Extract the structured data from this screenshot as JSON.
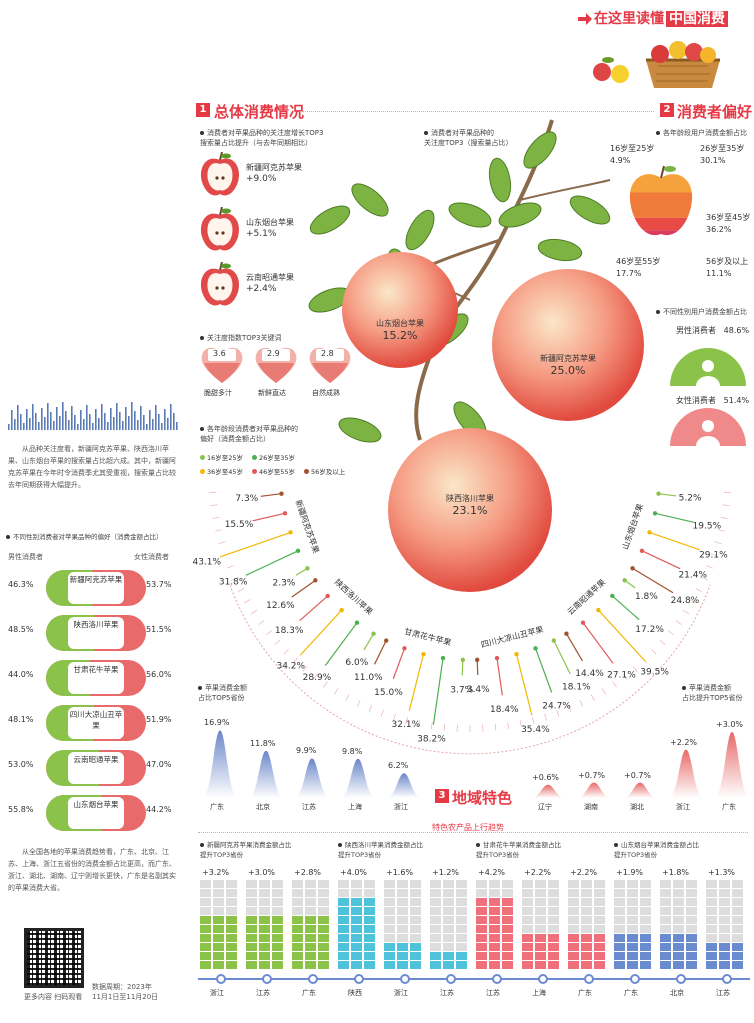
{
  "header": {
    "title_prefix": "在这里读懂",
    "title_highlight": "中国消费"
  },
  "section1": {
    "num": "1",
    "title": "总体消费情况"
  },
  "section2": {
    "num": "2",
    "title": "消费者偏好"
  },
  "section3": {
    "num": "3",
    "title": "地域特色"
  },
  "search_top3": {
    "caption": "消费者对苹果品种的关注度增长TOP3\n搜索量占比提升（与去年同期相比）",
    "items": [
      {
        "name": "新疆阿克苏苹果",
        "value": "+9.0%"
      },
      {
        "name": "山东烟台苹果",
        "value": "+5.1%"
      },
      {
        "name": "云南昭通苹果",
        "value": "+2.4%"
      }
    ]
  },
  "keywords": {
    "caption": "关注度指数TOP3关键词",
    "items": [
      {
        "score": "3.6",
        "label": "脆甜多汁"
      },
      {
        "score": "2.9",
        "label": "新鲜直达"
      },
      {
        "score": "2.8",
        "label": "自然成熟"
      }
    ]
  },
  "apple_tree": {
    "caption": "消费者对苹果品种的\n关注度TOP3（搜索量占比）",
    "apples": [
      {
        "name": "山东烟台苹果",
        "value": "15.2%"
      },
      {
        "name": "新疆阿克苏苹果",
        "value": "25.0%"
      },
      {
        "name": "陕西洛川苹果",
        "value": "23.1%"
      }
    ]
  },
  "age_caption": "各年龄段消费者对苹果品种的\n偏好（消费金额占比）",
  "age_legend": [
    {
      "label": "16岁至25岁",
      "color": "#8bc34a"
    },
    {
      "label": "26岁至35岁",
      "color": "#4caf50"
    },
    {
      "label": "36岁至45岁",
      "color": "#f2b705"
    },
    {
      "label": "46岁至55岁",
      "color": "#e05a5a"
    },
    {
      "label": "56岁及以上",
      "color": "#a0522d"
    }
  ],
  "radial": {
    "varieties": [
      {
        "name": "新疆阿克苏苹果",
        "values": [
          "2.3%",
          "31.8%",
          "43.1%",
          "15.5%",
          "7.3%"
        ]
      },
      {
        "name": "陕西洛川苹果",
        "values": [
          "6.0%",
          "28.9%",
          "34.2%",
          "18.3%",
          "12.6%"
        ]
      },
      {
        "name": "甘肃花牛苹果",
        "values": [
          "3.7%",
          "38.2%",
          "32.1%",
          "15.0%",
          "11.0%"
        ]
      },
      {
        "name": "四川大凉山丑苹果",
        "values": [
          "18.1%",
          "24.7%",
          "35.4%",
          "18.4%",
          "3.4%"
        ]
      },
      {
        "name": "云南昭通苹果",
        "values": [
          "1.8%",
          "17.2%",
          "39.5%",
          "27.1%",
          "14.4%"
        ]
      },
      {
        "name": "山东烟台苹果",
        "values": [
          "5.2%",
          "19.5%",
          "29.1%",
          "21.4%",
          "24.8%"
        ]
      }
    ]
  },
  "age_spend": {
    "caption": "各年龄段用户消费金额占比",
    "items": [
      {
        "label": "16岁至25岁",
        "value": "4.9%"
      },
      {
        "label": "26岁至35岁",
        "value": "30.1%"
      },
      {
        "label": "36岁至45岁",
        "value": "36.2%"
      },
      {
        "label": "46岁至55岁",
        "value": "17.7%"
      },
      {
        "label": "56岁及以上",
        "value": "11.1%"
      }
    ]
  },
  "gender_spend": {
    "caption": "不同性别用户消费金额占比",
    "male_label": "男性消费者",
    "male_value": "48.6%",
    "female_label": "女性消费者",
    "female_value": "51.4%"
  },
  "left_text1": "从品种关注度看，新疆阿克苏苹果、陕西洛川苹果、山东烟台苹果的搜索量占比超六成。其中，新疆阿克苏苹果在今年时令消费季尤其受重视，搜索量占比较去年同期获得大幅提升。",
  "gender_pref": {
    "caption": "不同性别消费者对苹果品种的偏好（消费金额占比）",
    "male_header": "男性消费者",
    "female_header": "女性消费者",
    "rows": [
      {
        "male": "46.3%",
        "name": "新疆阿克苏苹果",
        "female": "53.7%"
      },
      {
        "male": "48.5%",
        "name": "陕西洛川苹果",
        "female": "51.5%"
      },
      {
        "male": "44.0%",
        "name": "甘肃花牛苹果",
        "female": "56.0%"
      },
      {
        "male": "48.1%",
        "name": "四川大凉山丑苹果",
        "female": "51.9%"
      },
      {
        "male": "53.0%",
        "name": "云南昭通苹果",
        "female": "47.0%"
      },
      {
        "male": "55.8%",
        "name": "山东烟台苹果",
        "female": "44.2%"
      }
    ]
  },
  "left_text2": "从全国各地的苹果消费趋势看，广东、北京、江苏、上海、浙江五省份的消费金额占比更高，而广东、浙江、湖北、湖南、辽宁则增长更快，广东是名副其实的苹果消费大省。",
  "qr_caption": "更多内容 扫码观看",
  "data_period": "数据周期：2023年\n11月1日至11月20日",
  "top5_share": {
    "caption": "苹果消费金额\n占比TOP5省份",
    "items": [
      {
        "prov": "广东",
        "value": "16.9%"
      },
      {
        "prov": "北京",
        "value": "11.8%"
      },
      {
        "prov": "江苏",
        "value": "9.9%"
      },
      {
        "prov": "上海",
        "value": "9.8%"
      },
      {
        "prov": "浙江",
        "value": "6.2%"
      }
    ]
  },
  "top5_growth": {
    "caption": "苹果消费金额\n占比提升TOP5省份",
    "items": [
      {
        "prov": "辽宁",
        "value": "+0.6%"
      },
      {
        "prov": "湖南",
        "value": "+0.7%"
      },
      {
        "prov": "湖北",
        "value": "+0.7%"
      },
      {
        "prov": "浙江",
        "value": "+2.2%"
      },
      {
        "prov": "广东",
        "value": "+3.0%"
      }
    ]
  },
  "trend_title": "特色农产品上行趋势",
  "trend_groups": [
    {
      "caption": "新疆阿克苏苹果消费金额占比\n提升TOP3省份",
      "color": "#8bc34a",
      "items": [
        {
          "prov": "浙江",
          "value": "+3.2%"
        },
        {
          "prov": "江苏",
          "value": "+3.0%"
        },
        {
          "prov": "广东",
          "value": "+2.8%"
        }
      ]
    },
    {
      "caption": "陕西洛川苹果消费金额占比\n提升TOP3省份",
      "color": "#4fc3d9",
      "items": [
        {
          "prov": "陕西",
          "value": "+4.0%"
        },
        {
          "prov": "浙江",
          "value": "+1.6%"
        },
        {
          "prov": "江苏",
          "value": "+1.2%"
        }
      ]
    },
    {
      "caption": "甘肃花牛苹果消费金额占比\n提升TOP3省份",
      "color": "#ef6f7a",
      "items": [
        {
          "prov": "江苏",
          "value": "+4.2%"
        },
        {
          "prov": "上海",
          "value": "+2.2%"
        },
        {
          "prov": "广东",
          "value": "+2.2%"
        }
      ]
    },
    {
      "caption": "山东烟台苹果消费金额占比\n提升TOP3省份",
      "color": "#6b8bd1",
      "items": [
        {
          "prov": "广东",
          "value": "+1.9%"
        },
        {
          "prov": "北京",
          "value": "+1.8%"
        },
        {
          "prov": "江苏",
          "value": "+1.3%"
        }
      ]
    }
  ],
  "chart_data": [
    {
      "type": "bar",
      "title": "消费者对苹果品种的关注度增长TOP3",
      "categories": [
        "新疆阿克苏苹果",
        "山东烟台苹果",
        "云南昭通苹果"
      ],
      "values": [
        9.0,
        5.1,
        2.4
      ]
    },
    {
      "type": "bar",
      "title": "关注度指数TOP3关键词",
      "categories": [
        "脆甜多汁",
        "新鲜直达",
        "自然成熟"
      ],
      "values": [
        3.6,
        2.9,
        2.8
      ]
    },
    {
      "type": "bar",
      "title": "消费者对苹果品种的关注度TOP3（搜索量占比）",
      "categories": [
        "新疆阿克苏苹果",
        "陕西洛川苹果",
        "山东烟台苹果"
      ],
      "values": [
        25.0,
        23.1,
        15.2
      ]
    },
    {
      "type": "bar",
      "title": "各年龄段消费者对苹果品种的偏好（消费金额占比）",
      "categories": [
        "新疆阿克苏苹果",
        "陕西洛川苹果",
        "甘肃花牛苹果",
        "四川大凉山丑苹果",
        "云南昭通苹果",
        "山东烟台苹果"
      ],
      "series": [
        {
          "name": "16岁至25岁",
          "values": [
            2.3,
            6.0,
            3.7,
            18.1,
            1.8,
            5.2
          ]
        },
        {
          "name": "26岁至35岁",
          "values": [
            31.8,
            28.9,
            38.2,
            24.7,
            17.2,
            19.5
          ]
        },
        {
          "name": "36岁至45岁",
          "values": [
            43.1,
            34.2,
            32.1,
            35.4,
            39.5,
            29.1
          ]
        },
        {
          "name": "46岁至55岁",
          "values": [
            15.5,
            18.3,
            15.0,
            18.4,
            27.1,
            21.4
          ]
        },
        {
          "name": "56岁及以上",
          "values": [
            7.3,
            12.6,
            11.0,
            3.4,
            14.4,
            24.8
          ]
        }
      ]
    },
    {
      "type": "bar",
      "title": "各年龄段用户消费金额占比",
      "categories": [
        "16岁至25岁",
        "26岁至35岁",
        "36岁至45岁",
        "46岁至55岁",
        "56岁及以上"
      ],
      "values": [
        4.9,
        30.1,
        36.2,
        17.7,
        11.1
      ]
    },
    {
      "type": "pie",
      "title": "不同性别用户消费金额占比",
      "categories": [
        "男性消费者",
        "女性消费者"
      ],
      "values": [
        48.6,
        51.4
      ]
    },
    {
      "type": "bar",
      "title": "不同性别消费者对苹果品种的偏好（消费金额占比）",
      "categories": [
        "新疆阿克苏苹果",
        "陕西洛川苹果",
        "甘肃花牛苹果",
        "四川大凉山丑苹果",
        "云南昭通苹果",
        "山东烟台苹果"
      ],
      "series": [
        {
          "name": "男性消费者",
          "values": [
            46.3,
            48.5,
            44.0,
            48.1,
            53.0,
            55.8
          ]
        },
        {
          "name": "女性消费者",
          "values": [
            53.7,
            51.5,
            56.0,
            51.9,
            47.0,
            44.2
          ]
        }
      ]
    },
    {
      "type": "bar",
      "title": "苹果消费金额占比TOP5省份",
      "categories": [
        "广东",
        "北京",
        "江苏",
        "上海",
        "浙江"
      ],
      "values": [
        16.9,
        11.8,
        9.9,
        9.8,
        6.2
      ]
    },
    {
      "type": "bar",
      "title": "苹果消费金额占比提升TOP5省份",
      "categories": [
        "辽宁",
        "湖南",
        "湖北",
        "浙江",
        "广东"
      ],
      "values": [
        0.6,
        0.7,
        0.7,
        2.2,
        3.0
      ]
    },
    {
      "type": "bar",
      "title": "新疆阿克苏苹果消费金额占比提升TOP3省份",
      "categories": [
        "浙江",
        "江苏",
        "广东"
      ],
      "values": [
        3.2,
        3.0,
        2.8
      ]
    },
    {
      "type": "bar",
      "title": "陕西洛川苹果消费金额占比提升TOP3省份",
      "categories": [
        "陕西",
        "浙江",
        "江苏"
      ],
      "values": [
        4.0,
        1.6,
        1.2
      ]
    },
    {
      "type": "bar",
      "title": "甘肃花牛苹果消费金额占比提升TOP3省份",
      "categories": [
        "江苏",
        "上海",
        "广东"
      ],
      "values": [
        4.2,
        2.2,
        2.2
      ]
    },
    {
      "type": "bar",
      "title": "山东烟台苹果消费金额占比提升TOP3省份",
      "categories": [
        "广东",
        "北京",
        "江苏"
      ],
      "values": [
        1.9,
        1.8,
        1.3
      ]
    }
  ]
}
